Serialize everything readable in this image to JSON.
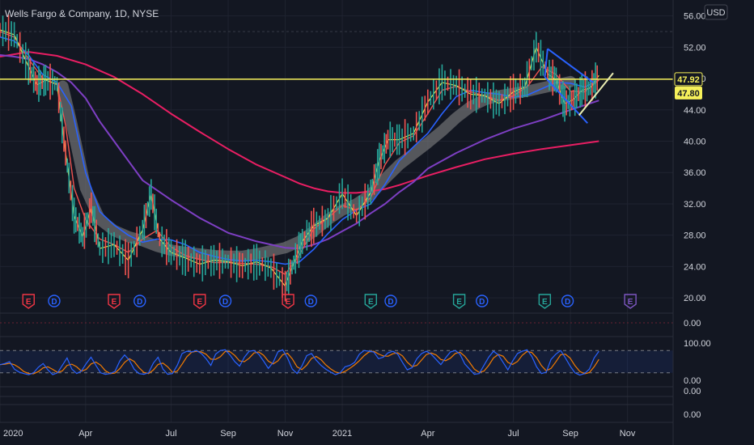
{
  "header": {
    "title": "Wells Fargo & Company, 1D, NYSE",
    "currency": "USD"
  },
  "colors": {
    "background": "#131722",
    "grid": "#1f2330",
    "axis_text": "#d1d4dc",
    "resistance": "#f5f05a",
    "ma20": "#f0e24a",
    "ma50": "#ef5350",
    "ma100": "#2962ff",
    "ma150": "#7e3fc4",
    "ma200": "#e91e63",
    "band": "#8c8c8c",
    "pattern": "#2962ff",
    "osc_fast": "#2962ff",
    "osc_slow": "#f57c00"
  },
  "price_tags": {
    "last": "47.92",
    "ma": "47.80"
  },
  "event_markers": [
    {
      "type": "E",
      "kind": "earnings",
      "month": 1.0,
      "color": "#f23645"
    },
    {
      "type": "D",
      "kind": "dividend",
      "month": 1.9,
      "color": "#2962ff"
    },
    {
      "type": "E",
      "kind": "earnings",
      "month": 4.0,
      "color": "#f23645"
    },
    {
      "type": "D",
      "kind": "dividend",
      "month": 4.9,
      "color": "#2962ff"
    },
    {
      "type": "E",
      "kind": "earnings",
      "month": 7.0,
      "color": "#f23645"
    },
    {
      "type": "D",
      "kind": "dividend",
      "month": 7.9,
      "color": "#2962ff"
    },
    {
      "type": "E",
      "kind": "earnings",
      "month": 10.1,
      "color": "#f23645"
    },
    {
      "type": "D",
      "kind": "dividend",
      "month": 10.9,
      "color": "#2962ff"
    },
    {
      "type": "E",
      "kind": "earnings",
      "month": 13.0,
      "color": "#26a69a"
    },
    {
      "type": "D",
      "kind": "dividend",
      "month": 13.7,
      "color": "#2962ff"
    },
    {
      "type": "E",
      "kind": "earnings",
      "month": 16.1,
      "color": "#26a69a"
    },
    {
      "type": "D",
      "kind": "dividend",
      "month": 16.9,
      "color": "#2962ff"
    },
    {
      "type": "E",
      "kind": "earnings",
      "month": 19.1,
      "color": "#26a69a"
    },
    {
      "type": "D",
      "kind": "dividend",
      "month": 19.9,
      "color": "#2962ff"
    },
    {
      "type": "E",
      "kind": "earnings",
      "month": 22.1,
      "color": "#7e57c2"
    }
  ],
  "chart_data": {
    "type": "line",
    "title": "Wells Fargo & Company, 1D, NYSE",
    "x_ticks": [
      "2020",
      "Apr",
      "Jul",
      "Sep",
      "Nov",
      "2021",
      "Apr",
      "Jul",
      "Sep",
      "Nov"
    ],
    "x_tick_months": [
      0,
      3,
      6,
      8,
      10,
      12,
      15,
      18,
      20,
      22
    ],
    "xlim": [
      0,
      23.6
    ],
    "y_ticks": [
      "56.00",
      "52.00",
      "48.00",
      "44.00",
      "40.00",
      "36.00",
      "32.00",
      "28.00",
      "24.00",
      "20.00"
    ],
    "ylim": [
      19.6,
      57.2
    ],
    "resistance_level": 47.92,
    "series": [
      {
        "key": "price",
        "x": [
          0,
          0.5,
          1,
          1.3,
          1.6,
          2,
          2.3,
          2.6,
          2.9,
          3.2,
          3.5,
          4,
          4.5,
          5,
          5.3,
          5.6,
          6,
          6.5,
          7,
          7.5,
          8,
          8.5,
          9,
          9.5,
          10,
          10.3,
          10.6,
          11,
          11.5,
          12,
          12.5,
          13,
          13.3,
          13.6,
          14,
          14.5,
          15,
          15.5,
          16,
          16.5,
          17,
          17.5,
          18,
          18.4,
          18.8,
          19.2,
          19.5,
          19.8,
          20.1,
          20.4,
          20.7,
          21
        ],
        "y": [
          54.2,
          53.6,
          49.5,
          47.2,
          47.8,
          47.3,
          38.5,
          30.5,
          27.8,
          31.5,
          26.3,
          26.8,
          24.8,
          28.7,
          33.2,
          27.5,
          25.8,
          25.1,
          24.3,
          24.8,
          24.6,
          24.1,
          24.6,
          23.8,
          21.5,
          24.5,
          27.2,
          29.2,
          30.2,
          33.3,
          30.5,
          33.5,
          37.5,
          40.2,
          40.2,
          41.0,
          45.0,
          47.5,
          47.1,
          46.0,
          45.8,
          44.8,
          46.3,
          46.9,
          52.0,
          48.6,
          47.8,
          44.8,
          45.3,
          46.5,
          46.8,
          48.4
        ]
      },
      {
        "key": "ma20",
        "x": [
          0,
          0.5,
          1,
          1.5,
          2,
          2.3,
          2.6,
          3,
          3.5,
          4,
          4.5,
          5,
          5.5,
          6,
          6.5,
          7,
          7.5,
          8,
          8.5,
          9,
          9.5,
          10,
          10.5,
          11,
          11.5,
          12,
          12.5,
          13,
          13.5,
          14,
          14.5,
          15,
          15.5,
          16,
          16.5,
          17,
          17.5,
          18,
          18.5,
          19,
          19.5,
          20,
          20.5,
          21
        ],
        "y": [
          54.0,
          53.3,
          50.5,
          48.0,
          47.2,
          42.0,
          34.0,
          30.0,
          27.5,
          26.8,
          25.8,
          27.5,
          28.6,
          26.5,
          25.4,
          24.9,
          24.5,
          24.5,
          24.4,
          24.3,
          24.0,
          23.0,
          25.5,
          28.8,
          30.2,
          31.8,
          31.2,
          32.8,
          37.0,
          39.8,
          40.7,
          43.5,
          46.5,
          47.0,
          46.3,
          45.8,
          45.2,
          45.8,
          47.0,
          49.5,
          48.5,
          46.4,
          46.3,
          47.8
        ]
      },
      {
        "key": "ma50",
        "x": [
          0,
          0.5,
          1,
          1.5,
          2,
          2.5,
          3,
          3.5,
          4,
          4.5,
          5,
          5.5,
          6,
          6.5,
          7,
          7.5,
          8,
          8.5,
          9,
          9.5,
          10,
          10.5,
          11,
          11.5,
          12,
          12.5,
          13,
          13.5,
          14,
          14.5,
          15,
          15.5,
          16,
          16.5,
          17,
          17.5,
          18,
          18.5,
          19,
          19.5,
          20,
          20.5,
          21
        ],
        "y": [
          53.3,
          52.8,
          51.0,
          48.5,
          47.5,
          44.5,
          36.0,
          31.0,
          29.3,
          28.0,
          27.1,
          27.5,
          27.4,
          26.8,
          25.8,
          25.3,
          24.9,
          24.7,
          24.8,
          24.6,
          24.3,
          24.6,
          26.2,
          28.2,
          30.0,
          31.2,
          32.0,
          34.5,
          37.5,
          39.3,
          41.0,
          43.5,
          45.7,
          46.5,
          46.2,
          46.0,
          45.6,
          45.9,
          46.7,
          47.5,
          47.4,
          46.9,
          47.8
        ]
      },
      {
        "key": "ma100",
        "x": [
          0,
          0.5,
          1,
          1.5,
          2,
          2.5,
          3,
          3.5,
          4,
          4.5,
          5,
          6,
          7,
          8,
          9,
          10,
          10.5,
          11,
          11.5,
          12,
          12.5,
          13,
          13.5,
          14,
          14.5,
          15,
          16,
          17,
          18,
          19,
          20,
          21
        ],
        "y": [
          51.0,
          50.8,
          50.5,
          49.8,
          48.8,
          47.5,
          45.5,
          42.5,
          40.0,
          37.5,
          35.0,
          32.5,
          30.2,
          28.3,
          27.2,
          26.4,
          26.3,
          26.8,
          27.5,
          28.5,
          29.5,
          30.8,
          32.0,
          33.5,
          34.8,
          36.5,
          38.5,
          40.2,
          41.6,
          42.7,
          44.0,
          45.2
        ]
      },
      {
        "key": "ma200",
        "x": [
          0,
          1,
          2,
          3,
          4,
          5,
          6,
          7,
          8,
          9,
          10,
          10.5,
          11,
          11.5,
          12,
          12.5,
          13,
          13.5,
          14,
          14.5,
          15,
          16,
          17,
          18,
          19,
          20,
          21
        ],
        "y": [
          50.8,
          51.4,
          50.9,
          49.8,
          48.2,
          46.0,
          43.5,
          41.2,
          39.0,
          37.0,
          35.4,
          34.6,
          34.0,
          33.6,
          33.4,
          33.4,
          33.6,
          33.9,
          34.4,
          35.0,
          35.6,
          36.7,
          37.7,
          38.4,
          39.0,
          39.5,
          40.0
        ]
      },
      {
        "key": "band",
        "x": [
          2.2,
          2.5,
          3,
          3.5,
          4,
          4.5,
          5,
          5.5,
          6,
          6.5,
          7,
          7.5,
          8,
          8.5,
          9,
          9.5,
          10,
          10.5,
          11,
          11.5,
          12,
          12.5,
          13,
          13.5,
          14,
          14.5,
          15,
          15.5,
          16,
          16.5,
          17,
          17.5,
          18,
          18.5,
          19,
          19.5,
          20
        ],
        "y": [
          47.0,
          42.5,
          34.0,
          30.0,
          28.6,
          27.8,
          27.3,
          26.6,
          26.1,
          25.8,
          25.6,
          25.4,
          25.3,
          25.3,
          25.6,
          26.0,
          26.4,
          27.2,
          28.5,
          30.0,
          31.2,
          32.0,
          33.2,
          35.2,
          37.0,
          38.4,
          39.8,
          41.3,
          43.0,
          44.4,
          45.3,
          45.8,
          46.1,
          46.4,
          46.8,
          47.2,
          47.6
        ]
      }
    ],
    "pattern_lines": [
      {
        "x": [
          19.1,
          20.6
        ],
        "y": [
          48.2,
          42.3
        ]
      },
      {
        "x": [
          19.2,
          20.8
        ],
        "y": [
          51.8,
          47.5
        ]
      },
      {
        "x": [
          19.1,
          19.2
        ],
        "y": [
          48.2,
          51.8
        ]
      },
      {
        "x": [
          20.3,
          21.5
        ],
        "y": [
          43.3,
          48.7
        ]
      }
    ],
    "oscillator": {
      "y_ticks": [
        "100.00",
        "0.00"
      ],
      "upper": 80,
      "lower": 20,
      "fast": [
        42,
        45,
        50,
        30,
        22,
        18,
        15,
        20,
        35,
        45,
        28,
        15,
        20,
        40,
        60,
        30,
        18,
        25,
        45,
        62,
        40,
        20,
        16,
        18,
        24,
        52,
        68,
        54,
        30,
        18,
        16,
        20,
        46,
        62,
        30,
        16,
        18,
        40,
        72,
        78,
        76,
        80,
        72,
        58,
        40,
        70,
        80,
        82,
        68,
        50,
        38,
        62,
        78,
        80,
        70,
        52,
        32,
        48,
        76,
        82,
        60,
        30,
        18,
        38,
        66,
        72,
        54,
        40,
        30,
        22,
        15,
        20,
        36,
        40,
        48,
        70,
        80,
        78,
        76,
        58,
        62,
        74,
        78,
        70,
        48,
        28,
        34,
        58,
        72,
        78,
        70,
        56,
        42,
        60,
        76,
        80,
        70,
        44,
        30,
        16,
        18,
        40,
        62,
        78,
        68,
        48,
        28,
        52,
        72,
        78,
        82,
        64,
        36,
        18,
        22,
        56,
        70,
        80,
        60,
        38,
        20,
        14,
        18,
        30,
        60,
        78
      ]
    },
    "secondary_panels": [
      {
        "y_tick": "0.00"
      },
      {
        "y_tick": "0.00"
      },
      {
        "y_tick": "0.00"
      }
    ]
  }
}
